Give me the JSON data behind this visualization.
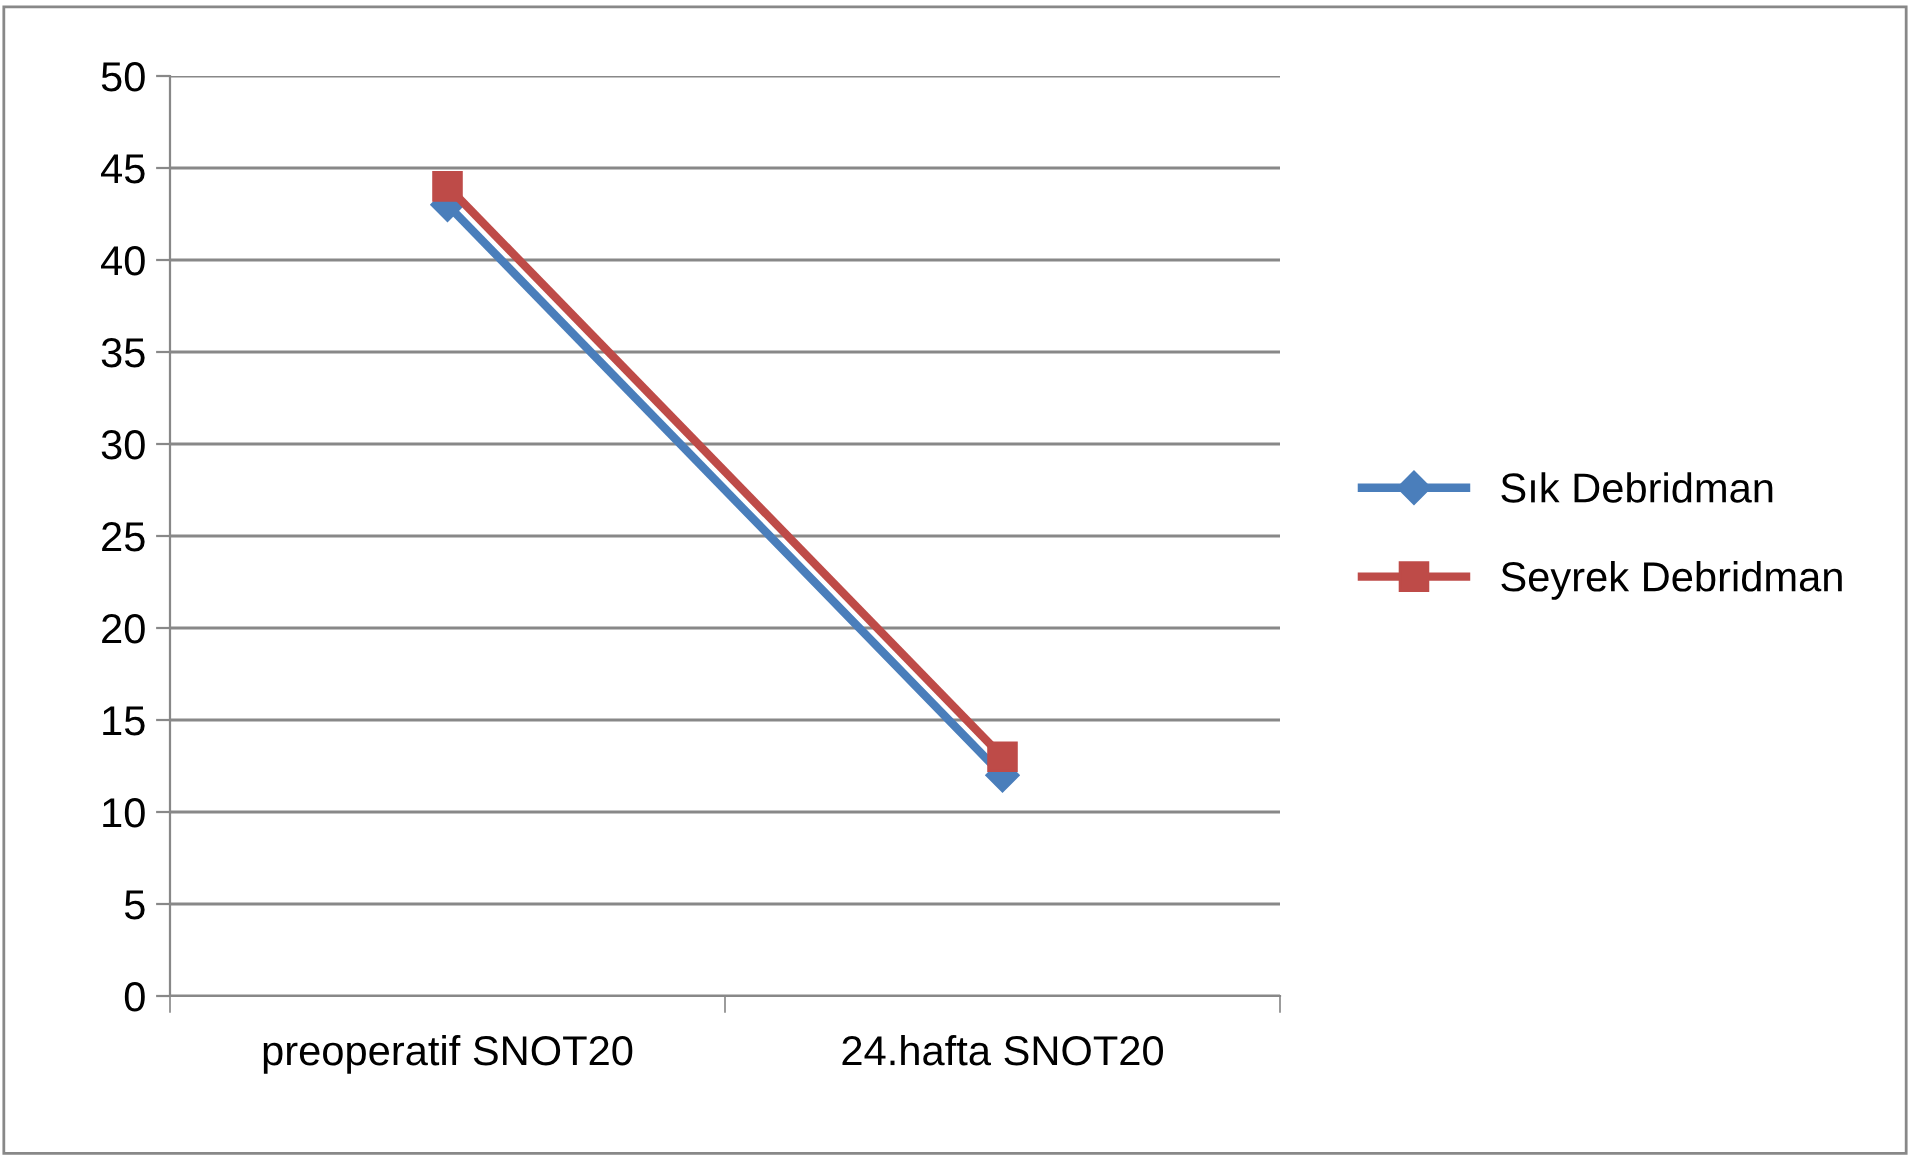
{
  "chart_data": {
    "type": "line",
    "categories": [
      "preoperatif SNOT20",
      "24.hafta SNOT20"
    ],
    "series": [
      {
        "name": "Sık Debridman",
        "color": "#4a7ebb",
        "values": [
          43,
          12
        ],
        "marker": "diamond"
      },
      {
        "name": "Seyrek Debridman",
        "color": "#be4b48",
        "values": [
          44,
          13
        ],
        "marker": "square"
      }
    ],
    "ylim": [
      0,
      50
    ],
    "yticks": [
      0,
      5,
      10,
      15,
      20,
      25,
      30,
      35,
      40,
      45,
      50
    ],
    "grid": "y",
    "legend": "right",
    "line_style": "solid"
  }
}
